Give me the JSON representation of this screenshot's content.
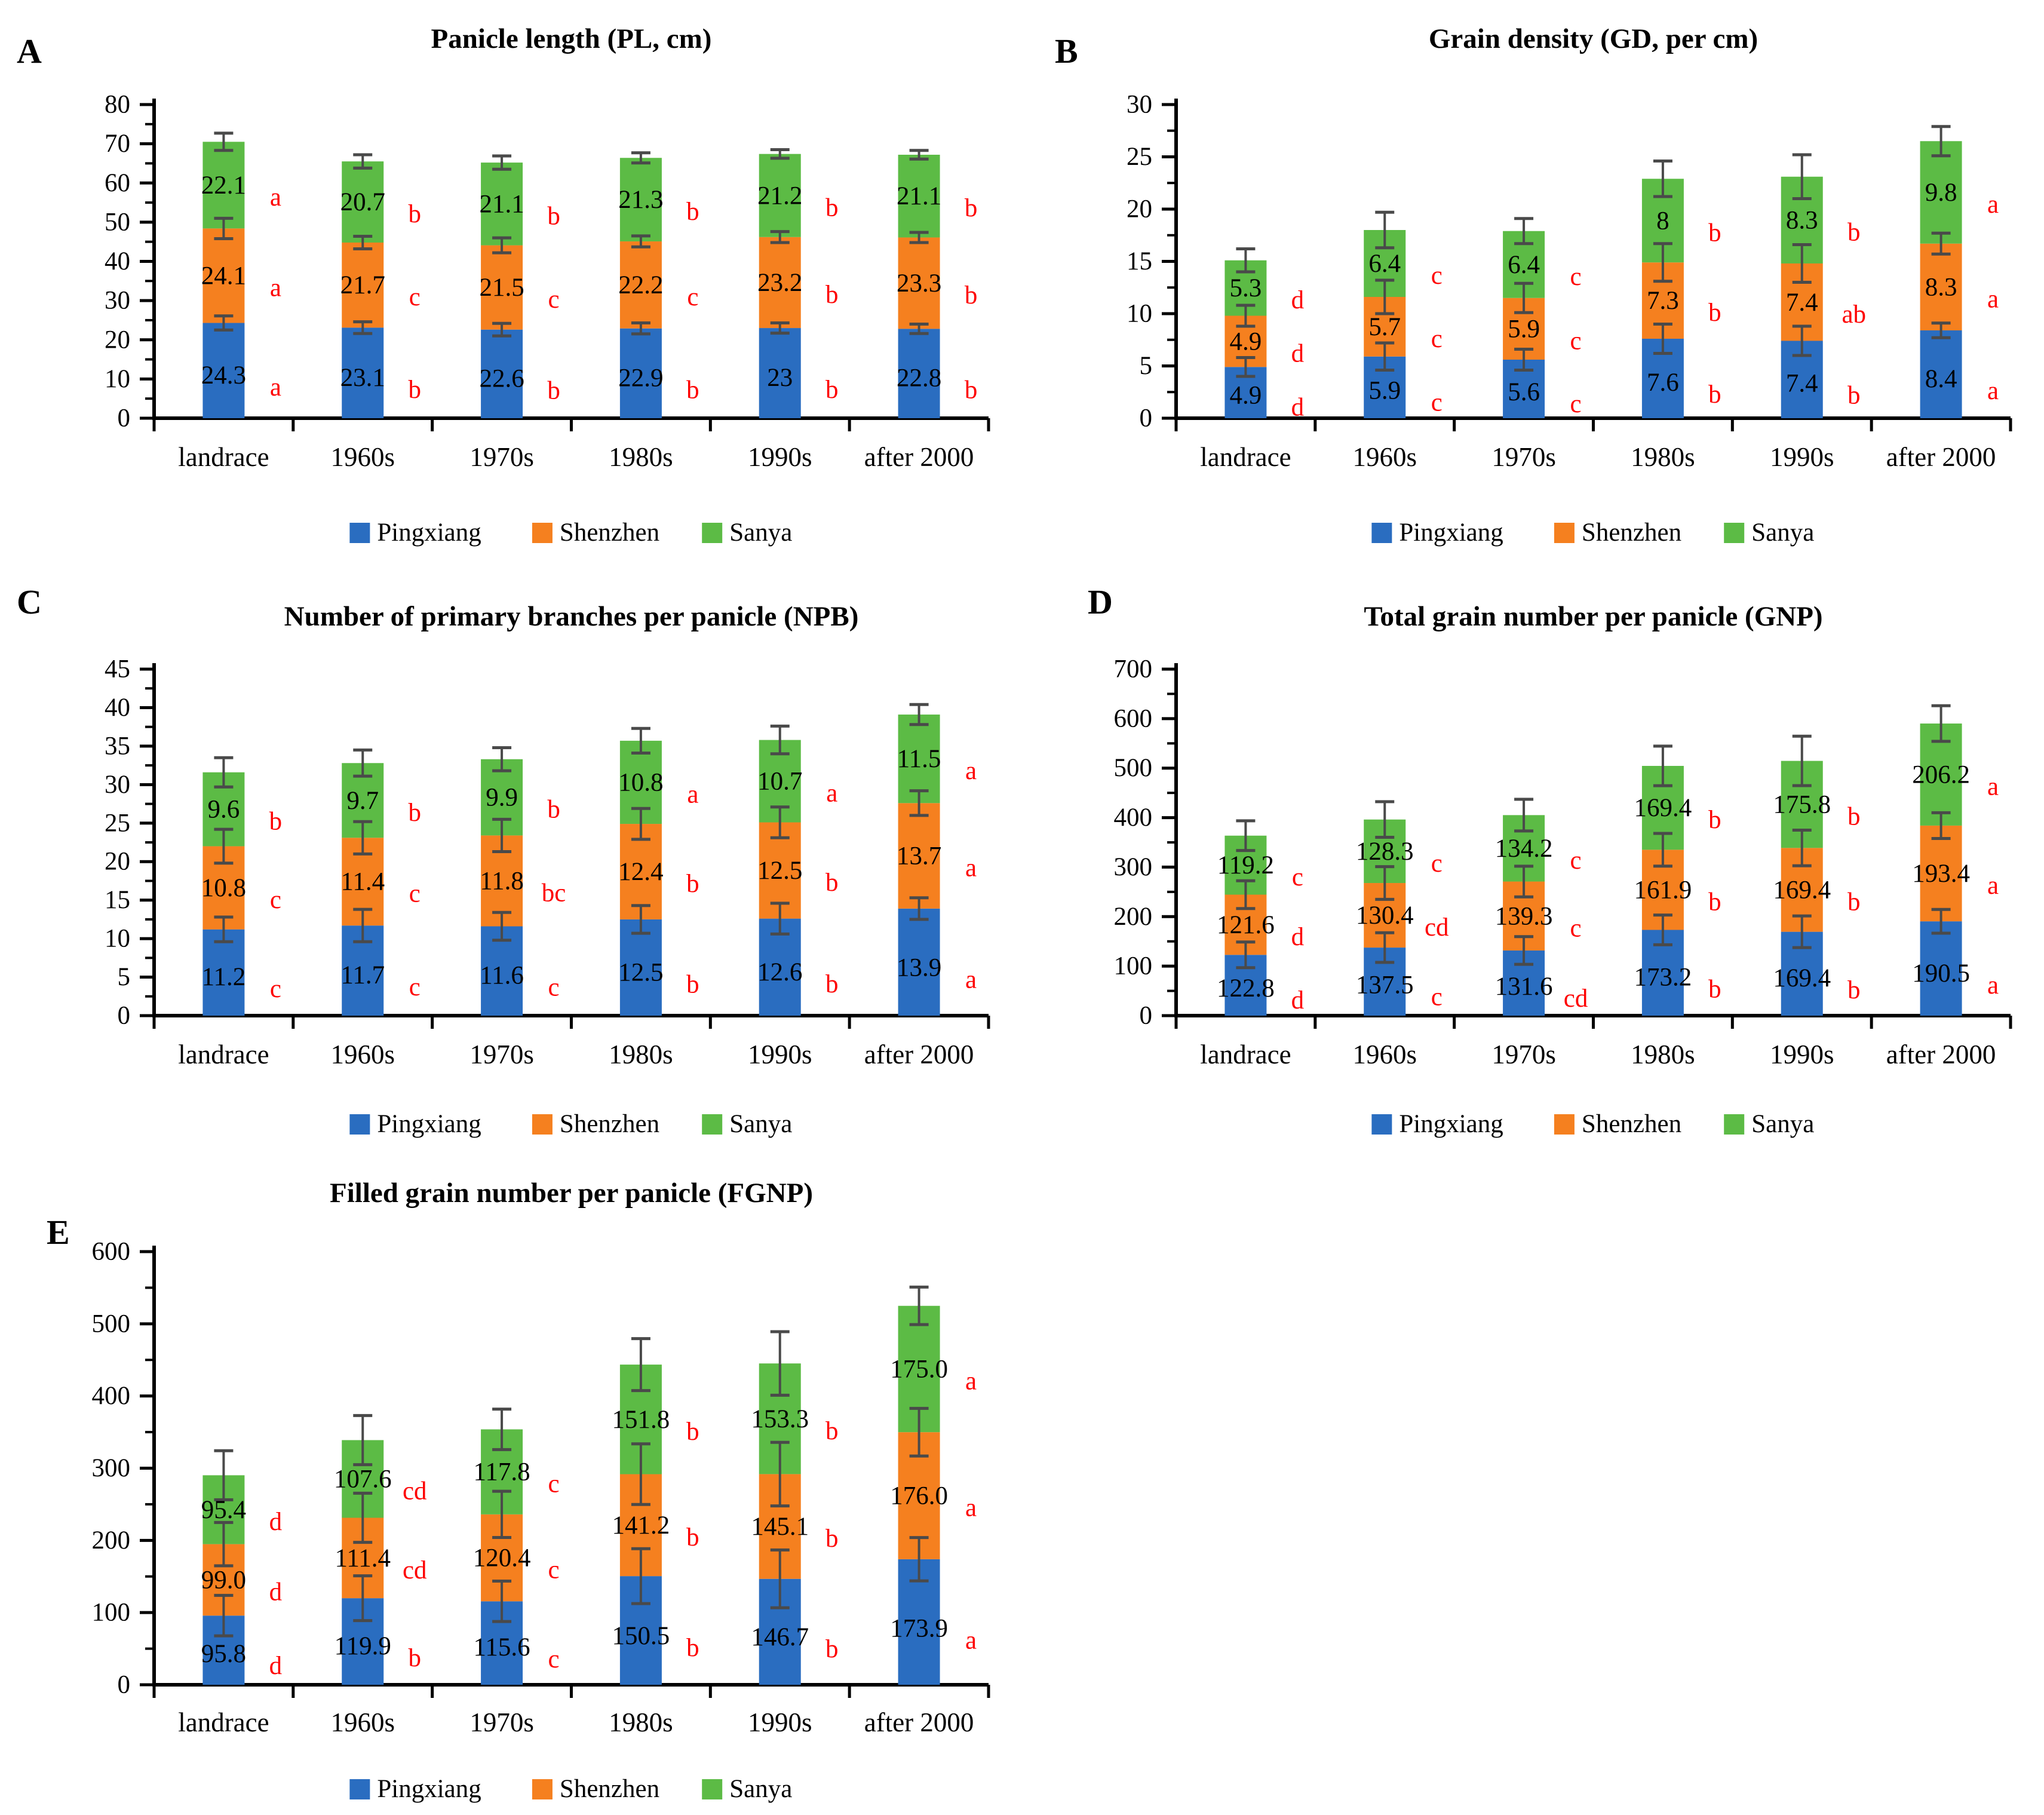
{
  "figure": {
    "letter_color": "#fe0000",
    "error_bar_color": "#4a4a4a",
    "axis_color": "#000000",
    "background": "#ffffff",
    "legend": {
      "items": [
        {
          "label": "Pingxiang",
          "color": "#2a6dc0"
        },
        {
          "label": "Shenzhen",
          "color": "#f5801f"
        },
        {
          "label": "Sanya",
          "color": "#5cbb45"
        }
      ]
    }
  },
  "chart_data": [
    {
      "panel": "A",
      "type": "bar",
      "stacked": true,
      "title": "Panicle length (PL, cm)",
      "ylim": [
        0,
        80
      ],
      "yticks": [
        "0",
        "10",
        "20",
        "30",
        "40",
        "50",
        "60",
        "70",
        "80"
      ],
      "minor_ticks": true,
      "grid": false,
      "legend_position": "bottom",
      "categories": [
        "landrace",
        "1960s",
        "1970s",
        "1980s",
        "1990s",
        "after 2000"
      ],
      "series": [
        {
          "name": "Pingxiang",
          "color": "#2a6dc0",
          "values": [
            "24.3",
            "23.1",
            "22.6",
            "22.9",
            "23",
            "22.8"
          ],
          "letters": [
            "a",
            "b",
            "b",
            "b",
            "b",
            "b"
          ],
          "errors": [
            1.8,
            1.5,
            1.6,
            1.4,
            1.3,
            1.2
          ]
        },
        {
          "name": "Shenzhen",
          "color": "#f5801f",
          "values": [
            "24.1",
            "21.7",
            "21.5",
            "22.2",
            "23.2",
            "23.3"
          ],
          "letters": [
            "a",
            "c",
            "c",
            "c",
            "b",
            "b"
          ],
          "errors": [
            2.6,
            1.6,
            1.9,
            1.4,
            1.4,
            1.3
          ]
        },
        {
          "name": "Sanya",
          "color": "#5cbb45",
          "values": [
            "22.1",
            "20.7",
            "21.1",
            "21.3",
            "21.2",
            "21.1"
          ],
          "letters": [
            "a",
            "b",
            "b",
            "b",
            "b",
            "b"
          ],
          "errors": [
            2.2,
            1.7,
            1.7,
            1.3,
            1.1,
            1.1
          ]
        }
      ]
    },
    {
      "panel": "B",
      "type": "bar",
      "stacked": true,
      "title": "Grain density (GD, per cm)",
      "ylim": [
        0,
        30
      ],
      "yticks": [
        "0",
        "5",
        "10",
        "15",
        "20",
        "25",
        "30"
      ],
      "minor_ticks": true,
      "grid": false,
      "legend_position": "bottom",
      "categories": [
        "landrace",
        "1960s",
        "1970s",
        "1980s",
        "1990s",
        "after 2000"
      ],
      "series": [
        {
          "name": "Pingxiang",
          "color": "#2a6dc0",
          "values": [
            "4.9",
            "5.9",
            "5.6",
            "7.6",
            "7.4",
            "8.4"
          ],
          "letters": [
            "d",
            "c",
            "c",
            "b",
            "b",
            "a"
          ],
          "errors": [
            0.9,
            1.3,
            1.0,
            1.4,
            1.4,
            0.7
          ]
        },
        {
          "name": "Shenzhen",
          "color": "#f5801f",
          "values": [
            "4.9",
            "5.7",
            "5.9",
            "7.3",
            "7.4",
            "8.3"
          ],
          "letters": [
            "d",
            "c",
            "c",
            "b",
            "ab",
            "a"
          ],
          "errors": [
            1.0,
            1.6,
            1.4,
            1.8,
            1.8,
            1.0
          ]
        },
        {
          "name": "Sanya",
          "color": "#5cbb45",
          "values": [
            "5.3",
            "6.4",
            "6.4",
            "8",
            "8.3",
            "9.8"
          ],
          "letters": [
            "d",
            "c",
            "c",
            "b",
            "b",
            "a"
          ],
          "errors": [
            1.1,
            1.7,
            1.2,
            1.7,
            2.1,
            1.4
          ]
        }
      ]
    },
    {
      "panel": "C",
      "type": "bar",
      "stacked": true,
      "title": "Number of primary branches per panicle (NPB)",
      "ylim": [
        0,
        45
      ],
      "yticks": [
        "0",
        "5",
        "10",
        "15",
        "20",
        "25",
        "30",
        "35",
        "40",
        "45"
      ],
      "minor_ticks": true,
      "grid": false,
      "legend_position": "bottom",
      "categories": [
        "landrace",
        "1960s",
        "1970s",
        "1980s",
        "1990s",
        "after 2000"
      ],
      "series": [
        {
          "name": "Pingxiang",
          "color": "#2a6dc0",
          "values": [
            "11.2",
            "11.7",
            "11.6",
            "12.5",
            "12.6",
            "13.9"
          ],
          "letters": [
            "c",
            "c",
            "c",
            "b",
            "b",
            "a"
          ],
          "errors": [
            1.6,
            2.1,
            1.8,
            1.8,
            2.0,
            1.4
          ]
        },
        {
          "name": "Shenzhen",
          "color": "#f5801f",
          "values": [
            "10.8",
            "11.4",
            "11.8",
            "12.4",
            "12.5",
            "13.7"
          ],
          "letters": [
            "c",
            "c",
            "bc",
            "b",
            "b",
            "a"
          ],
          "errors": [
            2.2,
            2.1,
            2.1,
            2.0,
            2.0,
            1.6
          ]
        },
        {
          "name": "Sanya",
          "color": "#5cbb45",
          "values": [
            "9.6",
            "9.7",
            "9.9",
            "10.8",
            "10.7",
            "11.5"
          ],
          "letters": [
            "b",
            "b",
            "b",
            "a",
            "a",
            "a"
          ],
          "errors": [
            1.9,
            1.7,
            1.5,
            1.6,
            1.8,
            1.3
          ]
        }
      ]
    },
    {
      "panel": "D",
      "type": "bar",
      "stacked": true,
      "title": "Total grain number per panicle (GNP)",
      "ylim": [
        0,
        700
      ],
      "yticks": [
        "0",
        "100",
        "200",
        "300",
        "400",
        "500",
        "600",
        "700"
      ],
      "minor_ticks": true,
      "grid": false,
      "legend_position": "bottom",
      "categories": [
        "landrace",
        "1960s",
        "1970s",
        "1980s",
        "1990s",
        "after 2000"
      ],
      "series": [
        {
          "name": "Pingxiang",
          "color": "#2a6dc0",
          "values": [
            "122.8",
            "137.5",
            "131.6",
            "173.2",
            "169.4",
            "190.5"
          ],
          "letters": [
            "d",
            "c",
            "cd",
            "b",
            "b",
            "a"
          ],
          "errors": [
            26,
            30,
            28,
            30,
            32,
            24
          ]
        },
        {
          "name": "Shenzhen",
          "color": "#f5801f",
          "values": [
            "121.6",
            "130.4",
            "139.3",
            "161.9",
            "169.4",
            "193.4"
          ],
          "letters": [
            "d",
            "cd",
            "c",
            "b",
            "b",
            "a"
          ],
          "errors": [
            28,
            33,
            31,
            33,
            36,
            26
          ]
        },
        {
          "name": "Sanya",
          "color": "#5cbb45",
          "values": [
            "119.2",
            "128.3",
            "134.2",
            "169.4",
            "175.8",
            "206.2"
          ],
          "letters": [
            "c",
            "c",
            "c",
            "b",
            "b",
            "a"
          ],
          "errors": [
            30,
            36,
            32,
            40,
            50,
            36
          ]
        }
      ]
    },
    {
      "panel": "E",
      "type": "bar",
      "stacked": true,
      "title": "Filled grain number per panicle (FGNP)",
      "ylim": [
        0,
        600
      ],
      "yticks": [
        "0",
        "100",
        "200",
        "300",
        "400",
        "500",
        "600"
      ],
      "minor_ticks": true,
      "grid": false,
      "legend_position": "bottom",
      "categories": [
        "landrace",
        "1960s",
        "1970s",
        "1980s",
        "1990s",
        "after 2000"
      ],
      "series": [
        {
          "name": "Pingxiang",
          "color": "#2a6dc0",
          "values": [
            "95.8",
            "119.9",
            "115.6",
            "150.5",
            "146.7",
            "173.9"
          ],
          "letters": [
            "d",
            "b",
            "c",
            "b",
            "b",
            "a"
          ],
          "errors": [
            28,
            31,
            28,
            38,
            40,
            30
          ]
        },
        {
          "name": "Shenzhen",
          "color": "#f5801f",
          "values": [
            "99.0",
            "111.4",
            "120.4",
            "141.2",
            "145.1",
            "176.0"
          ],
          "letters": [
            "d",
            "cd",
            "c",
            "b",
            "b",
            "a"
          ],
          "errors": [
            30,
            34,
            32,
            42,
            44,
            33
          ]
        },
        {
          "name": "Sanya",
          "color": "#5cbb45",
          "values": [
            "95.4",
            "107.6",
            "117.8",
            "151.8",
            "153.3",
            "175.0"
          ],
          "letters": [
            "d",
            "cd",
            "c",
            "b",
            "b",
            "a"
          ],
          "errors": [
            34,
            34,
            28,
            36,
            44,
            26
          ]
        }
      ]
    }
  ]
}
